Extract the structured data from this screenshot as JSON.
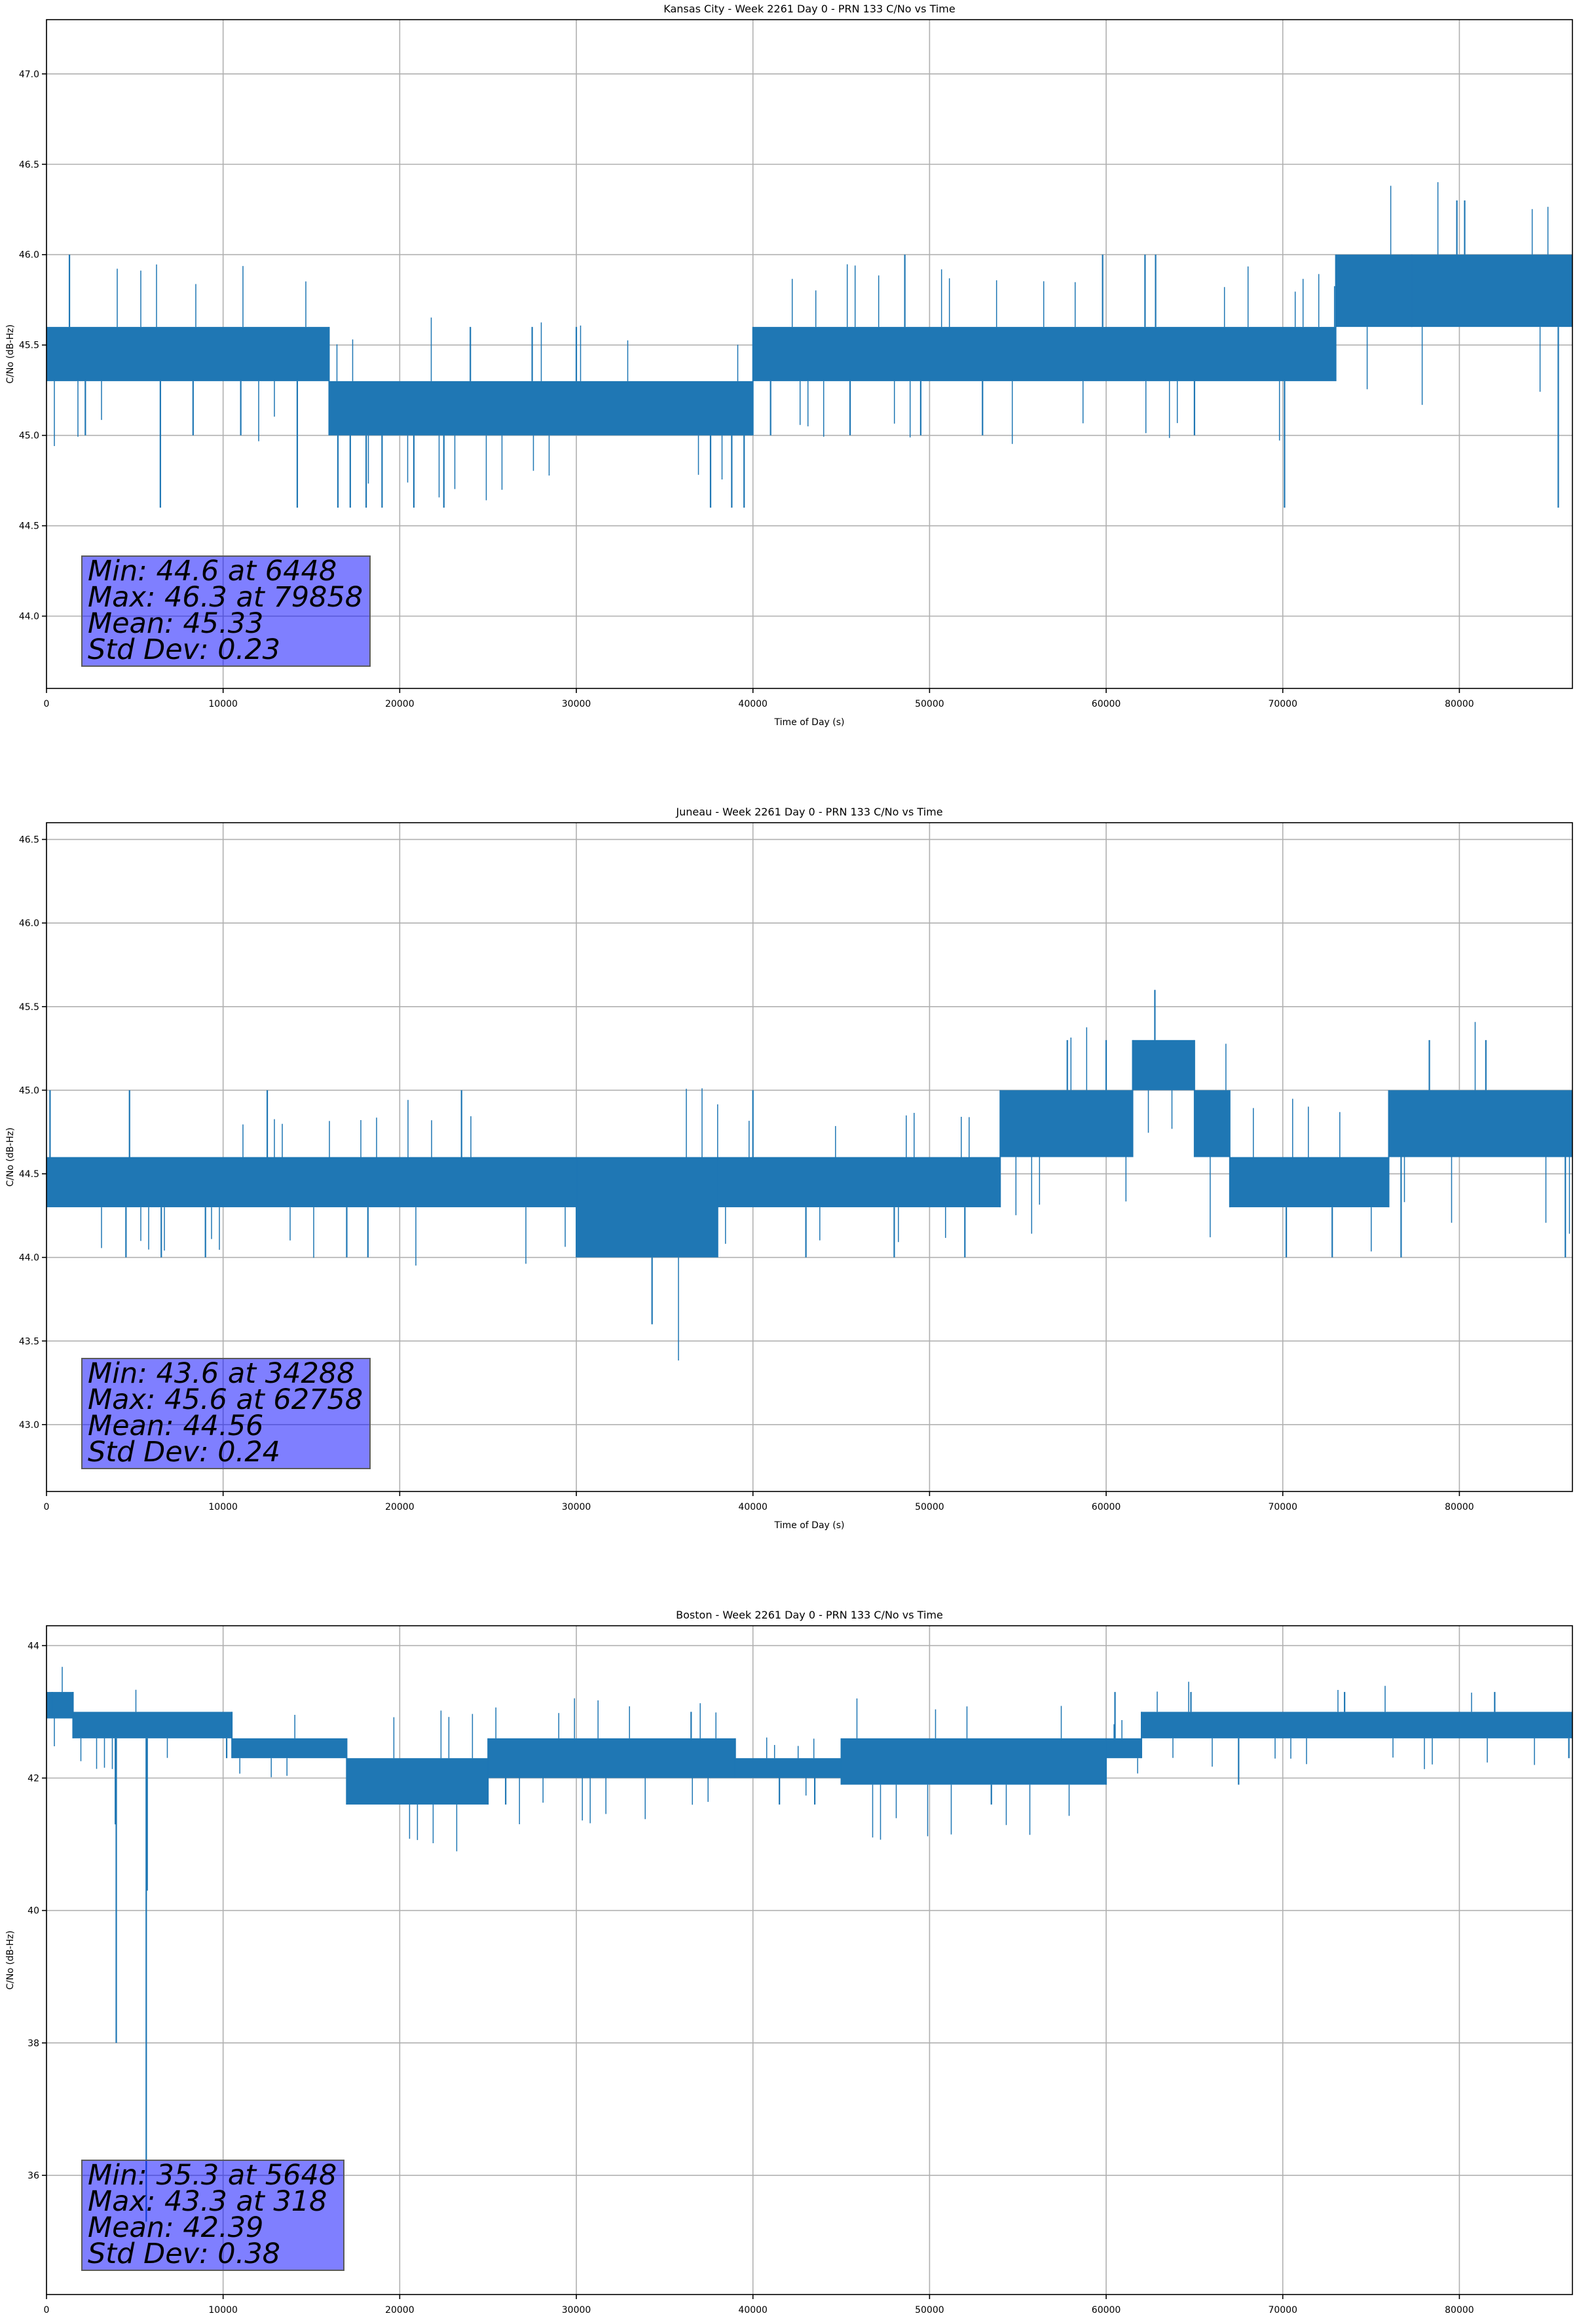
{
  "colors": {
    "series": "#1f77b4",
    "grid": "#b0b0b0",
    "box": "#8080ff"
  },
  "chart_data": [
    {
      "type": "line",
      "title": "Kansas City - Week 2261 Day 0 - PRN 133 C/No vs Time",
      "xlabel": "Time of Day (s)",
      "ylabel": "C/No (dB-Hz)",
      "xlim": [
        0,
        86400
      ],
      "ylim": [
        43.6,
        47.3
      ],
      "xticks": [
        0,
        10000,
        20000,
        30000,
        40000,
        50000,
        60000,
        70000,
        80000
      ],
      "yticks": [
        44.0,
        44.5,
        45.0,
        45.5,
        46.0,
        46.5,
        47.0
      ],
      "ytick_labels": [
        "44.0",
        "44.5",
        "45.0",
        "45.5",
        "46.0",
        "46.5",
        "47.0"
      ],
      "grid": true,
      "band_segments": [
        {
          "x": [
            0,
            16000
          ],
          "low": 45.3,
          "high": 45.6
        },
        {
          "x": [
            16000,
            40000
          ],
          "low": 45.0,
          "high": 45.3
        },
        {
          "x": [
            40000,
            73000
          ],
          "low": 45.3,
          "high": 45.6
        },
        {
          "x": [
            73000,
            86400
          ],
          "low": 45.6,
          "high": 46.0
        }
      ],
      "spikes": [
        {
          "x": 1300,
          "y": 46.0
        },
        {
          "x": 2200,
          "y": 45.0
        },
        {
          "x": 6448,
          "y": 44.6
        },
        {
          "x": 8300,
          "y": 45.0
        },
        {
          "x": 11000,
          "y": 45.0
        },
        {
          "x": 14200,
          "y": 44.6
        },
        {
          "x": 16500,
          "y": 44.6
        },
        {
          "x": 17200,
          "y": 44.6
        },
        {
          "x": 18100,
          "y": 44.6
        },
        {
          "x": 19000,
          "y": 44.6
        },
        {
          "x": 20800,
          "y": 44.6
        },
        {
          "x": 22500,
          "y": 44.6
        },
        {
          "x": 24000,
          "y": 45.6
        },
        {
          "x": 27500,
          "y": 45.6
        },
        {
          "x": 30000,
          "y": 45.6
        },
        {
          "x": 37600,
          "y": 44.6
        },
        {
          "x": 38800,
          "y": 44.6
        },
        {
          "x": 39500,
          "y": 44.6
        },
        {
          "x": 41000,
          "y": 45.0
        },
        {
          "x": 45500,
          "y": 45.0
        },
        {
          "x": 48600,
          "y": 46.0
        },
        {
          "x": 49500,
          "y": 45.0
        },
        {
          "x": 53000,
          "y": 45.0
        },
        {
          "x": 59800,
          "y": 46.0
        },
        {
          "x": 62200,
          "y": 46.0
        },
        {
          "x": 62800,
          "y": 46.0
        },
        {
          "x": 65000,
          "y": 45.0
        },
        {
          "x": 70100,
          "y": 44.6
        },
        {
          "x": 77300,
          "y": 46.0
        },
        {
          "x": 79858,
          "y": 46.3
        },
        {
          "x": 80300,
          "y": 46.3
        },
        {
          "x": 85600,
          "y": 44.6
        }
      ],
      "stats": {
        "min": "Min: 44.6 at 6448",
        "max": "Max: 46.3 at 79858",
        "mean": "Mean: 45.33",
        "std": "Std Dev: 0.23"
      }
    },
    {
      "type": "line",
      "title": "Juneau - Week 2261 Day 0 - PRN 133 C/No vs Time",
      "xlabel": "Time of Day (s)",
      "ylabel": "C/No (dB-Hz)",
      "xlim": [
        0,
        86400
      ],
      "ylim": [
        42.6,
        46.6
      ],
      "xticks": [
        0,
        10000,
        20000,
        30000,
        40000,
        50000,
        60000,
        70000,
        80000
      ],
      "yticks": [
        43.0,
        43.5,
        44.0,
        44.5,
        45.0,
        45.5,
        46.0,
        46.5
      ],
      "ytick_labels": [
        "43.0",
        "43.5",
        "44.0",
        "44.5",
        "45.0",
        "45.5",
        "46.0",
        "46.5"
      ],
      "grid": true,
      "band_segments": [
        {
          "x": [
            0,
            30000
          ],
          "low": 44.3,
          "high": 44.6
        },
        {
          "x": [
            30000,
            38000
          ],
          "low": 44.0,
          "high": 44.6
        },
        {
          "x": [
            38000,
            54000
          ],
          "low": 44.3,
          "high": 44.6
        },
        {
          "x": [
            54000,
            61500
          ],
          "low": 44.6,
          "high": 45.0
        },
        {
          "x": [
            61500,
            65000
          ],
          "low": 45.0,
          "high": 45.3
        },
        {
          "x": [
            65000,
            67000
          ],
          "low": 44.6,
          "high": 45.0
        },
        {
          "x": [
            67000,
            76000
          ],
          "low": 44.3,
          "high": 44.6
        },
        {
          "x": [
            76000,
            86400
          ],
          "low": 44.6,
          "high": 45.0
        }
      ],
      "spikes": [
        {
          "x": 200,
          "y": 45.0
        },
        {
          "x": 4500,
          "y": 44.0
        },
        {
          "x": 4700,
          "y": 45.0
        },
        {
          "x": 6500,
          "y": 44.0
        },
        {
          "x": 9000,
          "y": 44.0
        },
        {
          "x": 12500,
          "y": 45.0
        },
        {
          "x": 17000,
          "y": 44.0
        },
        {
          "x": 18200,
          "y": 44.0
        },
        {
          "x": 23500,
          "y": 45.0
        },
        {
          "x": 30100,
          "y": 44.0
        },
        {
          "x": 34288,
          "y": 43.6
        },
        {
          "x": 37900,
          "y": 44.0
        },
        {
          "x": 40000,
          "y": 45.0
        },
        {
          "x": 43000,
          "y": 44.0
        },
        {
          "x": 48000,
          "y": 44.0
        },
        {
          "x": 52000,
          "y": 44.0
        },
        {
          "x": 57800,
          "y": 45.3
        },
        {
          "x": 60000,
          "y": 45.3
        },
        {
          "x": 62758,
          "y": 45.6
        },
        {
          "x": 70200,
          "y": 44.0
        },
        {
          "x": 72800,
          "y": 44.0
        },
        {
          "x": 76700,
          "y": 44.0
        },
        {
          "x": 78300,
          "y": 45.3
        },
        {
          "x": 81500,
          "y": 45.3
        },
        {
          "x": 86000,
          "y": 44.0
        }
      ],
      "stats": {
        "min": "Min: 43.6 at 34288",
        "max": "Max: 45.6 at 62758",
        "mean": "Mean: 44.56",
        "std": "Std Dev: 0.24"
      }
    },
    {
      "type": "line",
      "title": "Boston - Week 2261 Day 0 - PRN 133 C/No vs Time",
      "xlabel": "Time of Day (s)",
      "ylabel": "C/No (dB-Hz)",
      "xlim": [
        0,
        86400
      ],
      "ylim": [
        34.2,
        44.3
      ],
      "xticks": [
        0,
        10000,
        20000,
        30000,
        40000,
        50000,
        60000,
        70000,
        80000
      ],
      "yticks": [
        36,
        38,
        40,
        42,
        44
      ],
      "ytick_labels": [
        "36",
        "38",
        "40",
        "42",
        "44"
      ],
      "grid": true,
      "band_segments": [
        {
          "x": [
            0,
            1500
          ],
          "low": 42.9,
          "high": 43.3
        },
        {
          "x": [
            1500,
            10500
          ],
          "low": 42.6,
          "high": 43.0
        },
        {
          "x": [
            10500,
            17000
          ],
          "low": 42.3,
          "high": 42.6
        },
        {
          "x": [
            17000,
            25000
          ],
          "low": 41.6,
          "high": 42.3
        },
        {
          "x": [
            25000,
            39000
          ],
          "low": 42.0,
          "high": 42.6
        },
        {
          "x": [
            39000,
            45000
          ],
          "low": 42.0,
          "high": 42.3
        },
        {
          "x": [
            45000,
            60000
          ],
          "low": 41.9,
          "high": 42.6
        },
        {
          "x": [
            60000,
            62000
          ],
          "low": 42.3,
          "high": 42.6
        },
        {
          "x": [
            62000,
            86400
          ],
          "low": 42.6,
          "high": 43.0
        }
      ],
      "spikes": [
        {
          "x": 318,
          "y": 43.3
        },
        {
          "x": 1500,
          "y": 43.3
        },
        {
          "x": 3900,
          "y": 41.3
        },
        {
          "x": 3950,
          "y": 38.0
        },
        {
          "x": 5648,
          "y": 35.3
        },
        {
          "x": 5700,
          "y": 40.3
        },
        {
          "x": 10200,
          "y": 42.3
        },
        {
          "x": 17000,
          "y": 41.6
        },
        {
          "x": 26000,
          "y": 41.6
        },
        {
          "x": 36500,
          "y": 43.0
        },
        {
          "x": 41500,
          "y": 41.6
        },
        {
          "x": 43500,
          "y": 41.6
        },
        {
          "x": 53500,
          "y": 41.6
        },
        {
          "x": 60500,
          "y": 43.3
        },
        {
          "x": 64800,
          "y": 43.3
        },
        {
          "x": 67500,
          "y": 41.9
        },
        {
          "x": 73500,
          "y": 43.3
        },
        {
          "x": 82000,
          "y": 43.3
        },
        {
          "x": 86200,
          "y": 42.3
        }
      ],
      "stats": {
        "min": "Min: 35.3 at 5648",
        "max": "Max: 43.3 at 318",
        "mean": "Mean: 42.39",
        "std": "Std Dev: 0.38"
      }
    }
  ]
}
